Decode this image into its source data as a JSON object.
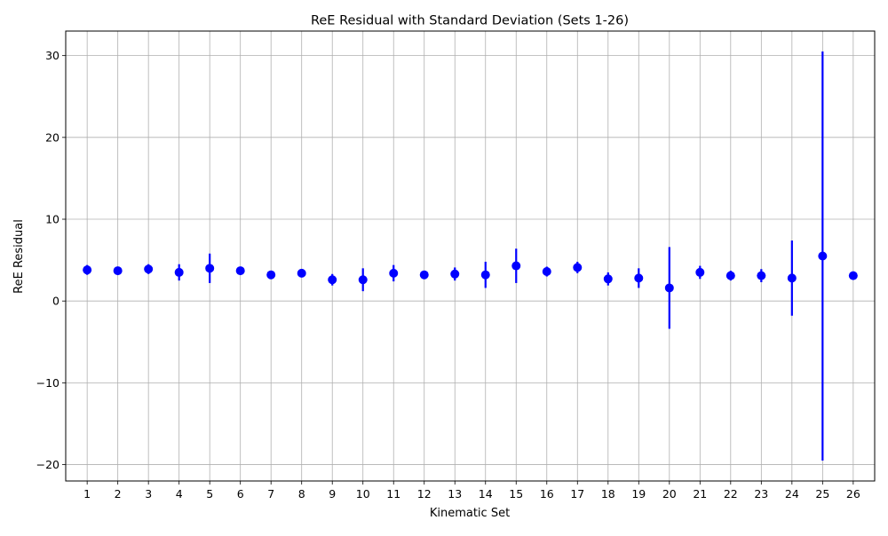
{
  "chart_data": {
    "type": "errorbar",
    "title": "ReE Residual with Standard Deviation (Sets 1-26)",
    "xlabel": "Kinematic Set",
    "ylabel": "ReE Residual",
    "categories": [
      "1",
      "2",
      "3",
      "4",
      "5",
      "6",
      "7",
      "8",
      "9",
      "10",
      "11",
      "12",
      "13",
      "14",
      "15",
      "16",
      "17",
      "18",
      "19",
      "20",
      "21",
      "22",
      "23",
      "24",
      "25",
      "26"
    ],
    "x": [
      1,
      2,
      3,
      4,
      5,
      6,
      7,
      8,
      9,
      10,
      11,
      12,
      13,
      14,
      15,
      16,
      17,
      18,
      19,
      20,
      21,
      22,
      23,
      24,
      25,
      26
    ],
    "series": [
      {
        "values": [
          3.8,
          3.7,
          3.9,
          3.5,
          4.0,
          3.7,
          3.2,
          3.4,
          2.6,
          2.6,
          3.4,
          3.2,
          3.3,
          3.2,
          4.3,
          3.6,
          4.1,
          2.7,
          2.8,
          1.6,
          3.5,
          3.1,
          3.1,
          2.8,
          5.5,
          3.1
        ],
        "std": [
          0.6,
          0.5,
          0.6,
          1.0,
          1.8,
          0.4,
          0.3,
          0.5,
          0.7,
          1.4,
          1.0,
          0.3,
          0.8,
          1.6,
          2.1,
          0.6,
          0.7,
          0.8,
          1.2,
          5.0,
          0.8,
          0.6,
          0.8,
          4.6,
          25.0,
          0.5
        ],
        "color": "#0000ff"
      }
    ],
    "ylim": [
      -22,
      33
    ],
    "xlim": [
      0.3,
      26.7
    ],
    "yticks": [
      -20,
      -10,
      0,
      10,
      20,
      30
    ],
    "ytick_labels": [
      "−20",
      "−10",
      "0",
      "10",
      "20",
      "30"
    ],
    "grid": true,
    "grid_color": "#b0b0b0"
  }
}
